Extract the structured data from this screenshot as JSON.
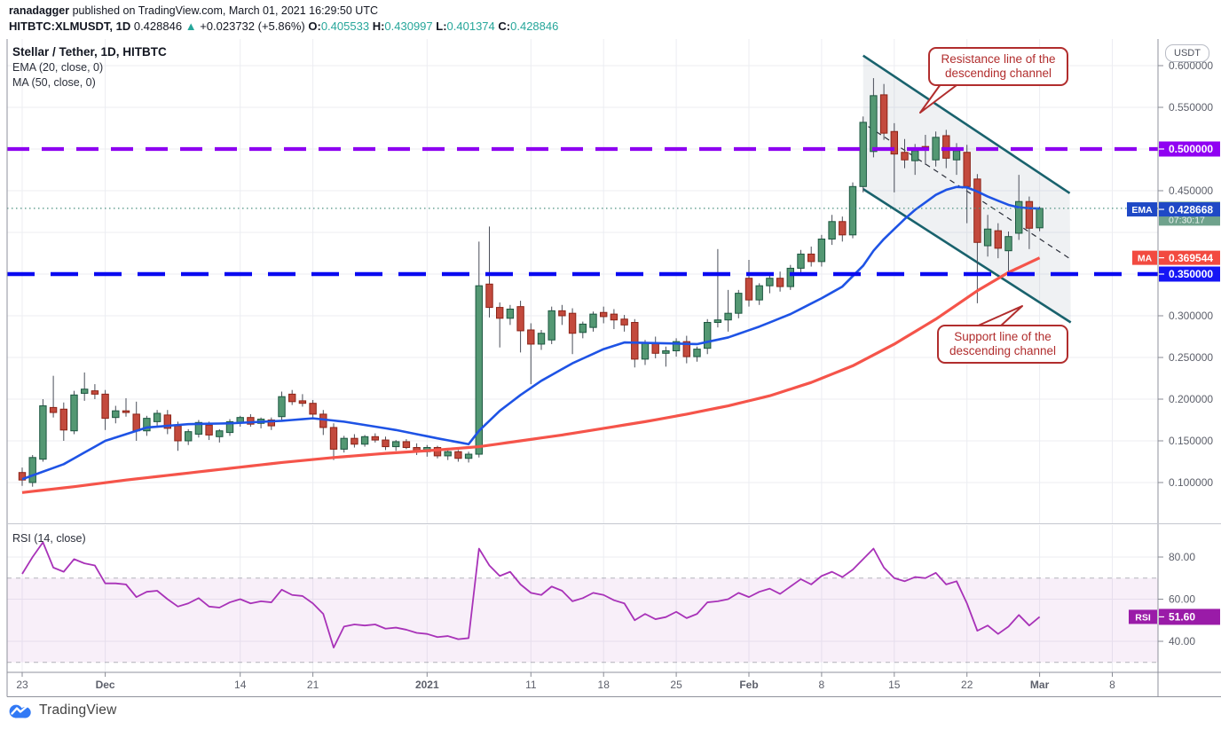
{
  "header": {
    "author": "ranadagger",
    "published": " published on TradingView.com, March 01, 2021 16:29:50 UTC",
    "symbol": "HITBTC:XLMUSDT, 1D",
    "last_price": "0.428846",
    "arrow": "▲",
    "change": "+0.023732 (+5.86%)",
    "o_label": "O:",
    "o_value": "0.405533",
    "h_label": "H:",
    "h_value": "0.430997",
    "l_label": "L:",
    "l_value": "0.401374",
    "c_label": "C:",
    "c_value": "0.428846"
  },
  "legend": {
    "title": "Stellar / Tether, 1D, HITBTC",
    "ema": "EMA (20, close, 0)",
    "ma": "MA (50, close, 0)",
    "rsi": "RSI (14, close)"
  },
  "annotations": {
    "resistance": {
      "text": "Resistance line of the descending channel",
      "tail": [
        [
          1060,
          95
        ],
        [
          1082,
          93
        ],
        [
          1037,
          127
        ]
      ]
    },
    "support": {
      "text": "Support line of the descending channel",
      "tail": [
        [
          1098,
          369
        ],
        [
          1126,
          369
        ],
        [
          1152,
          345
        ]
      ]
    }
  },
  "axis": {
    "currency_badge": "USDT",
    "price_ticks": [
      {
        "value": 0.6,
        "label": "0.600000"
      },
      {
        "value": 0.55,
        "label": "0.550000"
      },
      {
        "value": 0.45,
        "label": "0.450000"
      },
      {
        "value": 0.3,
        "label": "0.300000"
      },
      {
        "value": 0.25,
        "label": "0.250000"
      },
      {
        "value": 0.2,
        "label": "0.200000"
      },
      {
        "value": 0.15,
        "label": "0.150000"
      },
      {
        "value": 0.1,
        "label": "0.100000"
      }
    ],
    "rsi_ticks": [
      {
        "value": 80,
        "label": "80.00"
      },
      {
        "value": 60,
        "label": "60.00"
      },
      {
        "value": 40,
        "label": "40.00"
      }
    ],
    "time_labels": [
      {
        "d": 0,
        "label": "23",
        "bold": false
      },
      {
        "d": 8,
        "label": "Dec",
        "bold": true
      },
      {
        "d": 21,
        "label": "14",
        "bold": false
      },
      {
        "d": 28,
        "label": "21",
        "bold": false
      },
      {
        "d": 39,
        "label": "2021",
        "bold": true
      },
      {
        "d": 49,
        "label": "11",
        "bold": false
      },
      {
        "d": 56,
        "label": "18",
        "bold": false
      },
      {
        "d": 63,
        "label": "25",
        "bold": false
      },
      {
        "d": 70,
        "label": "Feb",
        "bold": true
      },
      {
        "d": 77,
        "label": "8",
        "bold": false
      },
      {
        "d": 84,
        "label": "15",
        "bold": false
      },
      {
        "d": 91,
        "label": "22",
        "bold": false
      },
      {
        "d": 98,
        "label": "Mar",
        "bold": true
      },
      {
        "d": 105,
        "label": "8",
        "bold": false
      }
    ]
  },
  "badges": {
    "price": {
      "text": "0.428846",
      "countdown": "07:30:17",
      "value": 0.428846,
      "bg": "#6fa28c"
    },
    "ema": {
      "tag": "EMA",
      "text": "0.428668",
      "value": 0.428668,
      "bg": "#1f49c6"
    },
    "ma": {
      "tag": "MA",
      "text": "0.369544",
      "value": 0.369544,
      "bg": "#f24a40"
    },
    "level_hi": {
      "text": "0.500000",
      "value": 0.5,
      "bg": "#9001f2"
    },
    "level_lo": {
      "text": "0.350000",
      "value": 0.35,
      "bg": "#1616f5"
    },
    "rsi": {
      "tag": "RSI",
      "text": "51.60",
      "value": 51.6,
      "bg": "#9a1ba8"
    }
  },
  "footer": {
    "brand": "TradingView"
  },
  "colors": {
    "up_fill": "#549873",
    "up_border": "#1c5640",
    "down_fill": "#c34a3d",
    "down_border": "#8c2317",
    "ema_line": "#1e53e5",
    "ma_line": "#f5544a",
    "rsi_line": "#a832b8",
    "rsi_band": "rgba(166,50,184,0.08)",
    "channel": "#19626d",
    "channel_fill": "rgba(150,158,175,0.15)",
    "level_hi": "#8d00f0",
    "level_lo": "#0a0af0",
    "price_dotted": "#4d9182",
    "grid": "#ecedf2",
    "border": "#8f929c",
    "axis_text": "#5d606b",
    "callout": "#b12d2d"
  },
  "chart_data": {
    "type": "candlestick",
    "title": "Stellar / Tether, 1D, HITBTC",
    "ylabel": "USDT",
    "price_range_visible": [
      0.05,
      0.632
    ],
    "grid": true,
    "candles_ohlc": [
      [
        0.112,
        0.118,
        0.096,
        0.103
      ],
      [
        0.1,
        0.133,
        0.095,
        0.13
      ],
      [
        0.128,
        0.2,
        0.125,
        0.192
      ],
      [
        0.19,
        0.228,
        0.178,
        0.184
      ],
      [
        0.188,
        0.196,
        0.15,
        0.163
      ],
      [
        0.162,
        0.21,
        0.158,
        0.205
      ],
      [
        0.207,
        0.232,
        0.198,
        0.212
      ],
      [
        0.21,
        0.218,
        0.2,
        0.206
      ],
      [
        0.206,
        0.211,
        0.163,
        0.177
      ],
      [
        0.178,
        0.192,
        0.171,
        0.186
      ],
      [
        0.186,
        0.201,
        0.179,
        0.184
      ],
      [
        0.182,
        0.197,
        0.15,
        0.162
      ],
      [
        0.162,
        0.18,
        0.156,
        0.177
      ],
      [
        0.173,
        0.187,
        0.167,
        0.183
      ],
      [
        0.181,
        0.187,
        0.158,
        0.165
      ],
      [
        0.168,
        0.173,
        0.138,
        0.15
      ],
      [
        0.15,
        0.164,
        0.145,
        0.161
      ],
      [
        0.158,
        0.175,
        0.154,
        0.172
      ],
      [
        0.169,
        0.173,
        0.151,
        0.157
      ],
      [
        0.155,
        0.164,
        0.148,
        0.162
      ],
      [
        0.16,
        0.176,
        0.156,
        0.173
      ],
      [
        0.172,
        0.18,
        0.167,
        0.178
      ],
      [
        0.178,
        0.182,
        0.167,
        0.17
      ],
      [
        0.171,
        0.178,
        0.165,
        0.176
      ],
      [
        0.175,
        0.178,
        0.163,
        0.168
      ],
      [
        0.179,
        0.209,
        0.175,
        0.203
      ],
      [
        0.206,
        0.211,
        0.193,
        0.197
      ],
      [
        0.198,
        0.206,
        0.191,
        0.195
      ],
      [
        0.195,
        0.199,
        0.177,
        0.182
      ],
      [
        0.182,
        0.187,
        0.157,
        0.166
      ],
      [
        0.166,
        0.171,
        0.127,
        0.14
      ],
      [
        0.14,
        0.156,
        0.136,
        0.153
      ],
      [
        0.153,
        0.158,
        0.142,
        0.146
      ],
      [
        0.146,
        0.157,
        0.143,
        0.155
      ],
      [
        0.155,
        0.159,
        0.148,
        0.151
      ],
      [
        0.151,
        0.155,
        0.139,
        0.143
      ],
      [
        0.143,
        0.151,
        0.138,
        0.149
      ],
      [
        0.149,
        0.152,
        0.14,
        0.142
      ],
      [
        0.142,
        0.147,
        0.133,
        0.137
      ],
      [
        0.137,
        0.145,
        0.131,
        0.142
      ],
      [
        0.142,
        0.144,
        0.129,
        0.132
      ],
      [
        0.132,
        0.14,
        0.127,
        0.137
      ],
      [
        0.137,
        0.139,
        0.125,
        0.129
      ],
      [
        0.129,
        0.137,
        0.124,
        0.134
      ],
      [
        0.134,
        0.389,
        0.13,
        0.336
      ],
      [
        0.338,
        0.407,
        0.298,
        0.31
      ],
      [
        0.31,
        0.316,
        0.262,
        0.297
      ],
      [
        0.297,
        0.313,
        0.289,
        0.308
      ],
      [
        0.311,
        0.318,
        0.256,
        0.282
      ],
      [
        0.283,
        0.291,
        0.218,
        0.266
      ],
      [
        0.266,
        0.283,
        0.259,
        0.279
      ],
      [
        0.271,
        0.311,
        0.266,
        0.306
      ],
      [
        0.306,
        0.313,
        0.289,
        0.3
      ],
      [
        0.303,
        0.309,
        0.254,
        0.279
      ],
      [
        0.28,
        0.293,
        0.273,
        0.29
      ],
      [
        0.286,
        0.305,
        0.281,
        0.302
      ],
      [
        0.304,
        0.311,
        0.291,
        0.299
      ],
      [
        0.302,
        0.308,
        0.284,
        0.295
      ],
      [
        0.296,
        0.301,
        0.281,
        0.289
      ],
      [
        0.292,
        0.296,
        0.238,
        0.248
      ],
      [
        0.248,
        0.271,
        0.241,
        0.267
      ],
      [
        0.267,
        0.275,
        0.249,
        0.255
      ],
      [
        0.255,
        0.263,
        0.239,
        0.258
      ],
      [
        0.258,
        0.273,
        0.251,
        0.269
      ],
      [
        0.269,
        0.276,
        0.243,
        0.251
      ],
      [
        0.251,
        0.263,
        0.245,
        0.26
      ],
      [
        0.261,
        0.296,
        0.254,
        0.292
      ],
      [
        0.292,
        0.38,
        0.286,
        0.295
      ],
      [
        0.295,
        0.331,
        0.281,
        0.303
      ],
      [
        0.303,
        0.331,
        0.297,
        0.327
      ],
      [
        0.345,
        0.367,
        0.311,
        0.319
      ],
      [
        0.319,
        0.339,
        0.313,
        0.336
      ],
      [
        0.336,
        0.349,
        0.327,
        0.345
      ],
      [
        0.345,
        0.353,
        0.329,
        0.335
      ],
      [
        0.335,
        0.361,
        0.331,
        0.357
      ],
      [
        0.357,
        0.379,
        0.349,
        0.374
      ],
      [
        0.374,
        0.383,
        0.359,
        0.365
      ],
      [
        0.365,
        0.397,
        0.359,
        0.392
      ],
      [
        0.392,
        0.421,
        0.385,
        0.413
      ],
      [
        0.413,
        0.419,
        0.389,
        0.397
      ],
      [
        0.397,
        0.46,
        0.393,
        0.455
      ],
      [
        0.455,
        0.539,
        0.448,
        0.532
      ],
      [
        0.497,
        0.585,
        0.49,
        0.564
      ],
      [
        0.565,
        0.578,
        0.511,
        0.519
      ],
      [
        0.521,
        0.531,
        0.448,
        0.494
      ],
      [
        0.496,
        0.512,
        0.477,
        0.487
      ],
      [
        0.486,
        0.506,
        0.469,
        0.498
      ],
      [
        0.503,
        0.517,
        0.481,
        0.499
      ],
      [
        0.487,
        0.521,
        0.479,
        0.514
      ],
      [
        0.516,
        0.523,
        0.477,
        0.489
      ],
      [
        0.487,
        0.507,
        0.469,
        0.498
      ],
      [
        0.496,
        0.505,
        0.411,
        0.455
      ],
      [
        0.464,
        0.47,
        0.315,
        0.388
      ],
      [
        0.384,
        0.421,
        0.371,
        0.404
      ],
      [
        0.402,
        0.411,
        0.369,
        0.381
      ],
      [
        0.378,
        0.401,
        0.351,
        0.395
      ],
      [
        0.399,
        0.469,
        0.391,
        0.437
      ],
      [
        0.437,
        0.443,
        0.38,
        0.405
      ],
      [
        0.4055,
        0.431,
        0.4014,
        0.4288
      ]
    ],
    "ema20_keypoints": [
      [
        0,
        0.104
      ],
      [
        4,
        0.122
      ],
      [
        8,
        0.15
      ],
      [
        12,
        0.166
      ],
      [
        16,
        0.17
      ],
      [
        20,
        0.171
      ],
      [
        25,
        0.174
      ],
      [
        28,
        0.177
      ],
      [
        31,
        0.173
      ],
      [
        36,
        0.163
      ],
      [
        40,
        0.153
      ],
      [
        43,
        0.146
      ],
      [
        44,
        0.162
      ],
      [
        46,
        0.186
      ],
      [
        48,
        0.205
      ],
      [
        50,
        0.222
      ],
      [
        53,
        0.243
      ],
      [
        56,
        0.26
      ],
      [
        58,
        0.268
      ],
      [
        62,
        0.267
      ],
      [
        65,
        0.266
      ],
      [
        68,
        0.274
      ],
      [
        71,
        0.287
      ],
      [
        74,
        0.302
      ],
      [
        77,
        0.321
      ],
      [
        79,
        0.335
      ],
      [
        81,
        0.36
      ],
      [
        82,
        0.378
      ],
      [
        83,
        0.392
      ],
      [
        84,
        0.404
      ],
      [
        85,
        0.416
      ],
      [
        86,
        0.427
      ],
      [
        87,
        0.436
      ],
      [
        88,
        0.445
      ],
      [
        89,
        0.451
      ],
      [
        90,
        0.4545
      ],
      [
        91,
        0.454
      ],
      [
        92,
        0.449
      ],
      [
        93,
        0.443
      ],
      [
        94,
        0.438
      ],
      [
        95,
        0.433
      ],
      [
        96,
        0.43
      ],
      [
        97,
        0.429
      ],
      [
        98,
        0.4287
      ]
    ],
    "ma50_keypoints": [
      [
        0,
        0.088
      ],
      [
        5,
        0.095
      ],
      [
        10,
        0.103
      ],
      [
        15,
        0.11
      ],
      [
        20,
        0.117
      ],
      [
        25,
        0.124
      ],
      [
        30,
        0.13
      ],
      [
        35,
        0.135
      ],
      [
        40,
        0.139
      ],
      [
        44,
        0.143
      ],
      [
        48,
        0.15
      ],
      [
        52,
        0.157
      ],
      [
        56,
        0.165
      ],
      [
        60,
        0.173
      ],
      [
        64,
        0.182
      ],
      [
        68,
        0.192
      ],
      [
        72,
        0.204
      ],
      [
        76,
        0.22
      ],
      [
        80,
        0.24
      ],
      [
        84,
        0.266
      ],
      [
        88,
        0.296
      ],
      [
        92,
        0.33
      ],
      [
        95,
        0.352
      ],
      [
        98,
        0.3695
      ]
    ],
    "levels": [
      {
        "value": 0.5,
        "style": "dashed-purple"
      },
      {
        "value": 0.35,
        "style": "dashed-blue"
      }
    ],
    "current_price_line": 0.428846,
    "channel": {
      "resistance": [
        [
          81,
          0.612
        ],
        [
          100.9,
          0.447
        ]
      ],
      "support": [
        [
          81,
          0.452
        ],
        [
          101.0,
          0.292
        ]
      ],
      "midline": [
        [
          81.5,
          0.527
        ],
        [
          101.1,
          0.367
        ]
      ]
    },
    "rsi": {
      "values": [
        72,
        80,
        87,
        75,
        73,
        79,
        77,
        76,
        67.5,
        67.5,
        67,
        61,
        63.5,
        64,
        60,
        56.5,
        58,
        60.5,
        56.5,
        56,
        58.5,
        60,
        58,
        59,
        58.5,
        64.5,
        62,
        61.5,
        58,
        53,
        37,
        47,
        48,
        47.5,
        48,
        46,
        46.5,
        45.5,
        44,
        43.5,
        42,
        42.5,
        41,
        41.5,
        84,
        76,
        71,
        73,
        67,
        63,
        62,
        66,
        64,
        59,
        60.5,
        63,
        62,
        59.5,
        58,
        50,
        53,
        50.5,
        51.5,
        54,
        51,
        53,
        58.5,
        59,
        60,
        63,
        61,
        63.5,
        65,
        62.5,
        66,
        69.5,
        67,
        71,
        73,
        70.5,
        74,
        79,
        84,
        75,
        70,
        68.5,
        70.5,
        70,
        72.5,
        67,
        68.5,
        58,
        45,
        47.5,
        43.5,
        47,
        52.5,
        47.5,
        51.6
      ],
      "upper_band": 70,
      "lower_band": 30,
      "last": 51.6
    }
  }
}
